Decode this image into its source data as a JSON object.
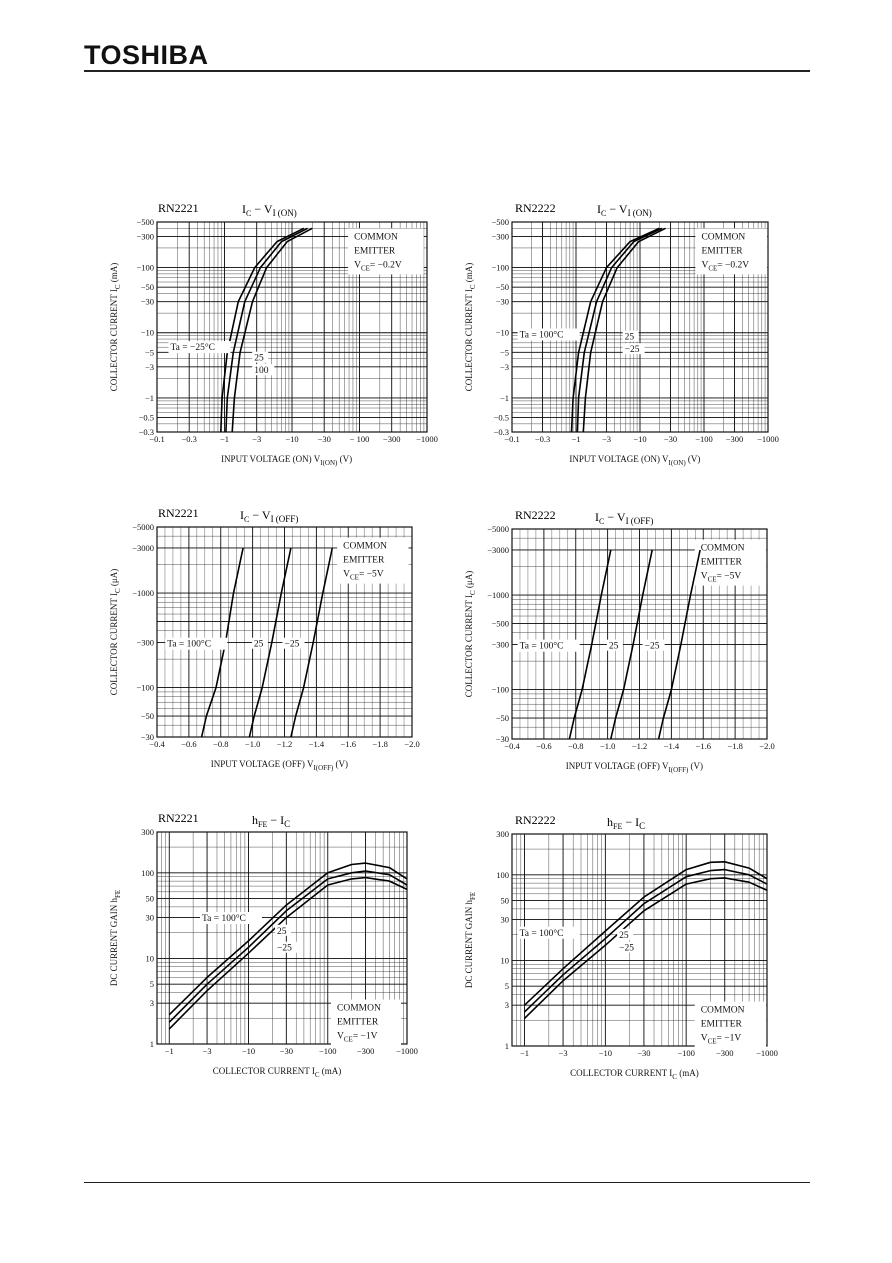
{
  "header": {
    "brand": "TOSHIBA"
  },
  "chart_data": [
    {
      "id": "p1",
      "type": "line",
      "part": "RN2221",
      "title_main": "I",
      "title_sub": "C",
      "title_rest": " − V",
      "title_sub2": "I (ON)",
      "xlabel": "INPUT VOLTAGE (ON)   V",
      "xlabel_sub": "I(ON)",
      "xlabel_unit": "   (V)",
      "ylabel": "COLLECTOR CURRENT   I",
      "ylabel_sub": "C",
      "ylabel_unit": "  (mA)",
      "x_scale": "log-magnitude",
      "y_scale": "log-magnitude",
      "xlim": [
        -0.1,
        -1000
      ],
      "ylim": [
        -0.3,
        -500
      ],
      "xticks": [
        -0.1,
        -0.3,
        -1,
        -3,
        -10,
        -30,
        -100,
        -300,
        -1000
      ],
      "xtick_labels": [
        "−0.1",
        "−0.3",
        "−1",
        "−3",
        "−10",
        "−30",
        "− 100",
        "−300",
        "−1000"
      ],
      "yticks": [
        -0.3,
        -0.5,
        -1,
        -3,
        -5,
        -10,
        -30,
        -50,
        -100,
        -300,
        -500
      ],
      "ytick_labels": [
        "−0.3",
        "−0.5",
        "−1",
        "−3",
        "−5",
        "−10",
        "−30",
        "−50",
        "−100",
        "−300",
        "−500"
      ],
      "notes": [
        "COMMON",
        "EMITTER",
        "V",
        "CE",
        "= −0.2V"
      ],
      "ta_label": "Ta = −25°C",
      "curve_labels": [
        "25",
        "100"
      ],
      "series": [
        {
          "label": "Ta = −25°C",
          "x": [
            -0.88,
            -0.92,
            -1.1,
            -1.6,
            -2.8,
            -6,
            -15
          ],
          "y": [
            -0.3,
            -1,
            -5,
            -30,
            -100,
            -250,
            -400
          ]
        },
        {
          "label": "25",
          "x": [
            -1.05,
            -1.1,
            -1.35,
            -2.0,
            -3.4,
            -7,
            -17
          ],
          "y": [
            -0.3,
            -1,
            -5,
            -30,
            -100,
            -250,
            -400
          ]
        },
        {
          "label": "100",
          "x": [
            -1.3,
            -1.4,
            -1.7,
            -2.6,
            -4.2,
            -8.5,
            -20
          ],
          "y": [
            -0.3,
            -1,
            -5,
            -30,
            -100,
            -250,
            -400
          ]
        }
      ]
    },
    {
      "id": "p2",
      "type": "line",
      "part": "RN2222",
      "title_main": "I",
      "title_sub": "C",
      "title_rest": " − V",
      "title_sub2": "I (ON)",
      "xlabel": "INPUT VOLTAGE (ON)   V",
      "xlabel_sub": "I(ON)",
      "xlabel_unit": "   (V)",
      "ylabel": "COLLECTOR CURRENT   I",
      "ylabel_sub": "C",
      "ylabel_unit": "  (mA)",
      "x_scale": "log-magnitude",
      "y_scale": "log-magnitude",
      "xlim": [
        -0.1,
        -1000
      ],
      "ylim": [
        -0.3,
        -500
      ],
      "xticks": [
        -0.1,
        -0.3,
        -1,
        -3,
        -10,
        -30,
        -100,
        -300,
        -1000
      ],
      "xtick_labels": [
        "−0.1",
        "−0.3",
        "−1",
        "−3",
        "−10",
        "−30",
        "−100",
        "−300",
        "−1000"
      ],
      "yticks": [
        -0.3,
        -0.5,
        -1,
        -3,
        -5,
        -10,
        -30,
        -50,
        -100,
        -300,
        -500
      ],
      "ytick_labels": [
        "−0.3",
        "−0.5",
        "−1",
        "−3",
        "−5",
        "−10",
        "−30",
        "−50",
        "−100",
        "−300",
        "−500"
      ],
      "notes": [
        "COMMON",
        "EMITTER",
        "V",
        "CE",
        "= −0.2V"
      ],
      "ta_label": "Ta = 100°C",
      "curve_labels": [
        "25",
        "−25"
      ],
      "series": [
        {
          "label": "Ta = 100°C",
          "x": [
            -0.85,
            -0.9,
            -1.1,
            -1.7,
            -3.0,
            -7,
            -20
          ],
          "y": [
            -0.3,
            -1,
            -5,
            -30,
            -100,
            -250,
            -400
          ]
        },
        {
          "label": "25",
          "x": [
            -1.05,
            -1.1,
            -1.35,
            -2.1,
            -3.6,
            -8,
            -22
          ],
          "y": [
            -0.3,
            -1,
            -5,
            -30,
            -100,
            -250,
            -400
          ]
        },
        {
          "label": "−25",
          "x": [
            -1.3,
            -1.4,
            -1.7,
            -2.6,
            -4.4,
            -9.5,
            -25
          ],
          "y": [
            -0.3,
            -1,
            -5,
            -30,
            -100,
            -250,
            -400
          ]
        }
      ]
    },
    {
      "id": "p3",
      "type": "line",
      "part": "RN2221",
      "title_main": "I",
      "title_sub": "C",
      "title_rest": " − V",
      "title_sub2": "I (OFF)",
      "xlabel": "INPUT VOLTAGE (OFF)   V",
      "xlabel_sub": "I(OFF)",
      "xlabel_unit": "   (V)",
      "ylabel": "COLLECTOR CURRENT   I",
      "ylabel_sub": "C",
      "ylabel_unit": "  (μA)",
      "x_scale": "linear",
      "y_scale": "log-magnitude",
      "xlim": [
        -0.4,
        -2.0
      ],
      "ylim": [
        -30,
        -5000
      ],
      "xticks": [
        -0.4,
        -0.6,
        -0.8,
        -1.0,
        -1.2,
        -1.4,
        -1.6,
        -1.8,
        -2.0
      ],
      "xtick_labels": [
        "−0.4",
        "−0.6",
        "−0.8",
        "−1.0",
        "−1.2",
        "−1.4",
        "−1.6",
        "−1.8",
        "−2.0"
      ],
      "yticks": [
        -30,
        -50,
        -100,
        -300,
        -500,
        -1000,
        -3000,
        -5000
      ],
      "ytick_labels": [
        "−30",
        "−50",
        "−100",
        "−300",
        "",
        "−1000",
        "−3000",
        "−5000"
      ],
      "notes": [
        "COMMON",
        "EMITTER",
        "V",
        "CE",
        "= −5V"
      ],
      "ta_label": "Ta = 100°C",
      "curve_labels": [
        "25",
        "−25"
      ],
      "series": [
        {
          "label": "Ta = 100°C",
          "x": [
            -0.68,
            -0.71,
            -0.77,
            -0.83,
            -0.88,
            -0.94
          ],
          "y": [
            -30,
            -50,
            -100,
            -300,
            -1000,
            -3000
          ]
        },
        {
          "label": "25",
          "x": [
            -0.98,
            -1.01,
            -1.06,
            -1.12,
            -1.18,
            -1.24
          ],
          "y": [
            -30,
            -50,
            -100,
            -300,
            -1000,
            -3000
          ]
        },
        {
          "label": "−25",
          "x": [
            -1.24,
            -1.27,
            -1.32,
            -1.38,
            -1.44,
            -1.5
          ],
          "y": [
            -30,
            -50,
            -100,
            -300,
            -1000,
            -3000
          ]
        }
      ]
    },
    {
      "id": "p4",
      "type": "line",
      "part": "RN2222",
      "title_main": "I",
      "title_sub": "C",
      "title_rest": " − V",
      "title_sub2": "I (OFF)",
      "xlabel": "INPUT VOLTAGE (OFF)   V",
      "xlabel_sub": "I(OFF)",
      "xlabel_unit": "   (V)",
      "ylabel": "COLLECTOR CURRENT   I",
      "ylabel_sub": "C",
      "ylabel_unit": "  (μA)",
      "x_scale": "linear",
      "y_scale": "log-magnitude",
      "xlim": [
        -0.4,
        -2.0
      ],
      "ylim": [
        -30,
        -5000
      ],
      "xticks": [
        -0.4,
        -0.6,
        -0.8,
        -1.0,
        -1.2,
        -1.4,
        -1.6,
        -1.8,
        -2.0
      ],
      "xtick_labels": [
        "−0.4",
        "−0.6",
        "−0.8",
        "−1.0",
        "−1.2",
        "−1.4",
        "−1.6",
        "−1.8",
        "−2.0"
      ],
      "yticks": [
        -30,
        -50,
        -100,
        -300,
        -500,
        -1000,
        -3000,
        -5000
      ],
      "ytick_labels": [
        "−30",
        "−50",
        "−100",
        "−300",
        "−500",
        "−1000",
        "−3000",
        "−5000"
      ],
      "notes": [
        "COMMON",
        "EMITTER",
        "V",
        "CE",
        "= −5V"
      ],
      "ta_label": "Ta = 100°C",
      "curve_labels": [
        "25",
        "−25"
      ],
      "series": [
        {
          "label": "Ta = 100°C",
          "x": [
            -0.76,
            -0.79,
            -0.84,
            -0.9,
            -0.96,
            -1.02
          ],
          "y": [
            -30,
            -50,
            -100,
            -300,
            -1000,
            -3000
          ]
        },
        {
          "label": "25",
          "x": [
            -1.02,
            -1.05,
            -1.1,
            -1.16,
            -1.22,
            -1.28
          ],
          "y": [
            -30,
            -50,
            -100,
            -300,
            -1000,
            -3000
          ]
        },
        {
          "label": "−25",
          "x": [
            -1.32,
            -1.35,
            -1.4,
            -1.46,
            -1.52,
            -1.58
          ],
          "y": [
            -30,
            -50,
            -100,
            -300,
            -1000,
            -3000
          ]
        }
      ]
    },
    {
      "id": "p5",
      "type": "line",
      "part": "RN2221",
      "title_main": "h",
      "title_sub": "FE",
      "title_rest": " − I",
      "title_sub2": "C",
      "xlabel": "COLLECTOR CURRENT   I",
      "xlabel_sub": "C",
      "xlabel_unit": "   (mA)",
      "ylabel": "DC CURRENT GAIN   h",
      "ylabel_sub": "FE",
      "ylabel_unit": "",
      "x_scale": "log-magnitude",
      "y_scale": "log",
      "xlim": [
        -0.7,
        -1000
      ],
      "ylim": [
        1,
        300
      ],
      "xticks": [
        -1,
        -3,
        -10,
        -30,
        -100,
        -300,
        -1000
      ],
      "xtick_labels": [
        "−1",
        "−3",
        "−10",
        "−30",
        "−100",
        "−300",
        "−1000"
      ],
      "yticks": [
        1,
        3,
        5,
        10,
        30,
        50,
        100,
        300
      ],
      "ytick_labels": [
        "1",
        "3",
        "5",
        "10",
        "30",
        "50",
        "100",
        "300"
      ],
      "notes": [
        "COMMON",
        "EMITTER",
        "V",
        "CE",
        "= −1V"
      ],
      "ta_label": "Ta = 100°C",
      "curve_labels": [
        "25",
        "−25"
      ],
      "series": [
        {
          "label": "Ta = 100°C",
          "x": [
            -1,
            -3,
            -10,
            -30,
            -100,
            -200,
            -300,
            -600,
            -1000
          ],
          "y": [
            2.2,
            6,
            16,
            42,
            100,
            125,
            130,
            115,
            85
          ]
        },
        {
          "label": "25",
          "x": [
            -1,
            -3,
            -10,
            -30,
            -100,
            -200,
            -300,
            -600,
            -1000
          ],
          "y": [
            1.8,
            5,
            13.5,
            36,
            85,
            100,
            105,
            95,
            72
          ]
        },
        {
          "label": "−25",
          "x": [
            -1,
            -3,
            -10,
            -30,
            -100,
            -200,
            -300,
            -600,
            -1000
          ],
          "y": [
            1.5,
            4.2,
            11.5,
            30,
            72,
            85,
            88,
            80,
            64
          ]
        }
      ]
    },
    {
      "id": "p6",
      "type": "line",
      "part": "RN2222",
      "title_main": "h",
      "title_sub": "FE",
      "title_rest": " − I",
      "title_sub2": "C",
      "xlabel": "COLLECTOR CURRENT   I",
      "xlabel_sub": "C",
      "xlabel_unit": "   (mA)",
      "ylabel": "DC CURRENT GAIN   h",
      "ylabel_sub": "FE",
      "ylabel_unit": "",
      "x_scale": "log-magnitude",
      "y_scale": "log",
      "xlim": [
        -0.7,
        -1000
      ],
      "ylim": [
        1,
        300
      ],
      "xticks": [
        -1,
        -3,
        -10,
        -30,
        -100,
        -300,
        -1000
      ],
      "xtick_labels": [
        "−1",
        "−3",
        "−10",
        "−30",
        "−100",
        "−300",
        "−1000"
      ],
      "yticks": [
        1,
        3,
        5,
        10,
        30,
        50,
        100,
        300
      ],
      "ytick_labels": [
        "1",
        "3",
        "5",
        "10",
        "30",
        "50",
        "100",
        "300"
      ],
      "notes": [
        "COMMON",
        "EMITTER",
        "V",
        "CE",
        "= −1V"
      ],
      "ta_label": "Ta = 100°C",
      "curve_labels": [
        "25",
        "−25"
      ],
      "series": [
        {
          "label": "Ta = 100°C",
          "x": [
            -1,
            -3,
            -10,
            -30,
            -100,
            -200,
            -300,
            -600,
            -1000
          ],
          "y": [
            3,
            8,
            22,
            55,
            115,
            140,
            142,
            120,
            90
          ]
        },
        {
          "label": "25",
          "x": [
            -1,
            -3,
            -10,
            -30,
            -100,
            -200,
            -300,
            -600,
            -1000
          ],
          "y": [
            2.5,
            6.8,
            18,
            46,
            95,
            112,
            115,
            100,
            78
          ]
        },
        {
          "label": "−25",
          "x": [
            -1,
            -3,
            -10,
            -30,
            -100,
            -200,
            -300,
            -600,
            -1000
          ],
          "y": [
            2.1,
            5.8,
            15,
            38,
            78,
            90,
            92,
            82,
            66
          ]
        }
      ]
    }
  ]
}
